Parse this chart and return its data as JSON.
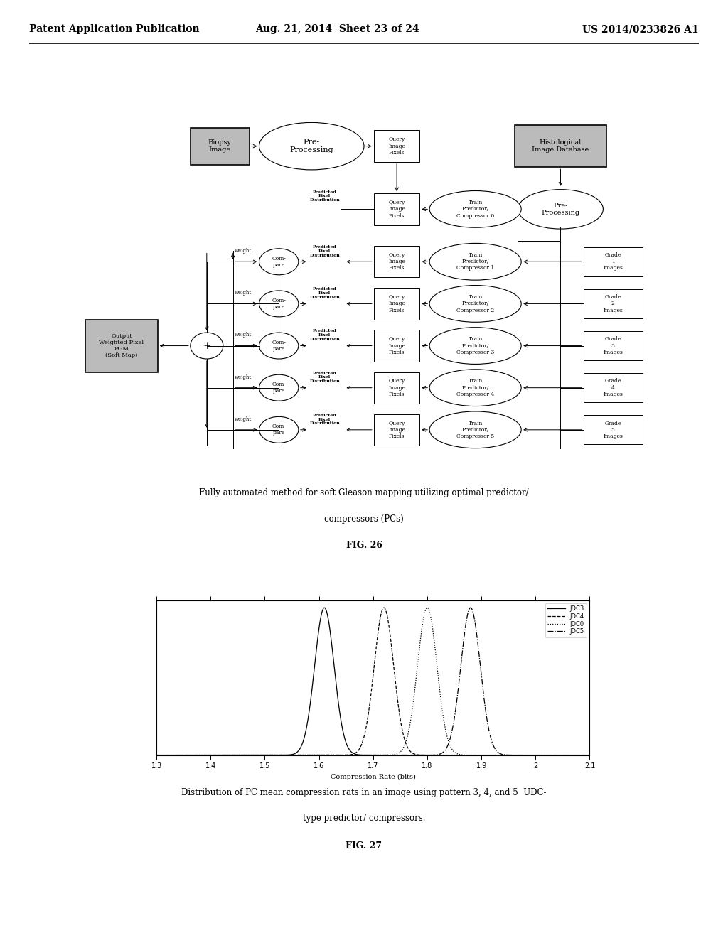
{
  "bg_color": "#ffffff",
  "header": {
    "left": "Patent Application Publication",
    "center": "Aug. 21, 2014  Sheet 23 of 24",
    "right": "US 2014/0233826 A1",
    "fontsize": 11
  },
  "fig26_caption_line1": "Fully automated method for soft Gleason mapping utilizing optimal predictor/",
  "fig26_caption_line2": "compressors (PCs)",
  "fig26_label": "FIG. 26",
  "fig27_caption_line1": "Distribution of PC mean compression rats in an image using pattern 3, 4, and 5  UDC-",
  "fig27_caption_line2": "type predictor/ compressors.",
  "fig27_label": "FIG. 27",
  "plot_xlim": [
    1.3,
    2.1
  ],
  "plot_ylim": [
    0,
    1.05
  ],
  "plot_xticks": [
    1.3,
    1.4,
    1.5,
    1.6,
    1.7,
    1.8,
    1.9,
    2,
    2.1
  ],
  "xlabel": "Compression Rate (bits)",
  "curves": [
    {
      "label": "JDC3",
      "mean": 1.61,
      "std": 0.018,
      "linestyle": "-",
      "color": "#000000"
    },
    {
      "label": "JDC4",
      "mean": 1.72,
      "std": 0.018,
      "linestyle": "--",
      "color": "#000000"
    },
    {
      "label": "JDC0",
      "mean": 1.8,
      "std": 0.018,
      "linestyle": ":",
      "color": "#000000"
    },
    {
      "label": "JDC5",
      "mean": 1.88,
      "std": 0.018,
      "linestyle": "-.",
      "color": "#000000"
    }
  ]
}
